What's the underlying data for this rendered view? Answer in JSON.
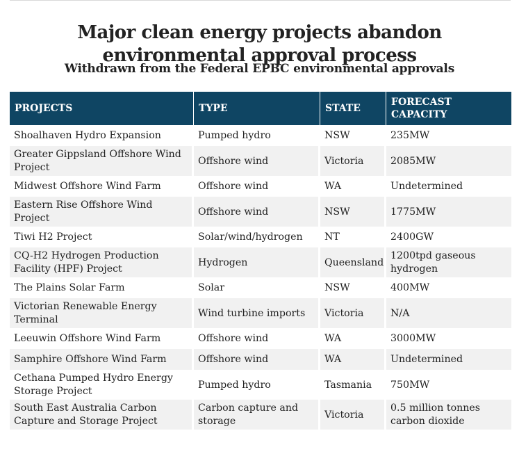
{
  "title_lines": [
    "Major clean energy projects abandon",
    "environmental approval process"
  ],
  "subtitle": "Withdrawn from the Federal EPBC environmental approvals",
  "table": {
    "headers": [
      "PROJECTS",
      "TYPE",
      "STATE",
      "FORECAST CAPACITY"
    ],
    "rows": [
      {
        "project": "Shoalhaven Hydro Expansion",
        "type": "Pumped hydro",
        "state": "NSW",
        "capacity": "235MW"
      },
      {
        "project": "Greater Gippsland Offshore Wind Project",
        "type": "Offshore wind",
        "state": "Victoria",
        "capacity": "2085MW"
      },
      {
        "project": "Midwest Offshore Wind Farm",
        "type": "Offshore wind",
        "state": "WA",
        "capacity": "Undetermined"
      },
      {
        "project": "Eastern Rise Offshore Wind Project",
        "type": "Offshore wind",
        "state": "NSW",
        "capacity": "1775MW"
      },
      {
        "project": "Tiwi H2 Project",
        "type": "Solar/wind/hydrogen",
        "state": "NT",
        "capacity": "2400GW"
      },
      {
        "project": "CQ-H2 Hydrogen Production Facility (HPF) Project",
        "type": "Hydrogen",
        "state": "Queensland",
        "capacity": "1200tpd gaseous hydrogen"
      },
      {
        "project": "The Plains Solar Farm",
        "type": "Solar",
        "state": "NSW",
        "capacity": "400MW"
      },
      {
        "project": "Victorian Renewable Energy Terminal",
        "type": "Wind turbine imports",
        "state": "Victoria",
        "capacity": "N/A"
      },
      {
        "project": "Leeuwin Offshore Wind Farm",
        "type": "Offshore wind",
        "state": "WA",
        "capacity": "3000MW"
      },
      {
        "project": "Samphire Offshore Wind Farm",
        "type": "Offshore wind",
        "state": "WA",
        "capacity": "Undetermined"
      },
      {
        "project": "Cethana Pumped Hydro Energy Storage Project",
        "type": "Pumped hydro",
        "state": "Tasmania",
        "capacity": "750MW"
      },
      {
        "project": "South East Australia Carbon Capture and Storage Project",
        "type": "Carbon capture and storage",
        "state": "Victoria",
        "capacity": "0.5 million tonnes carbon dioxide"
      }
    ]
  },
  "colors": {
    "header_bg": "#0f4563",
    "header_text": "#ffffff",
    "row_alt_bg": "#f1f1f1",
    "text": "#222222"
  }
}
